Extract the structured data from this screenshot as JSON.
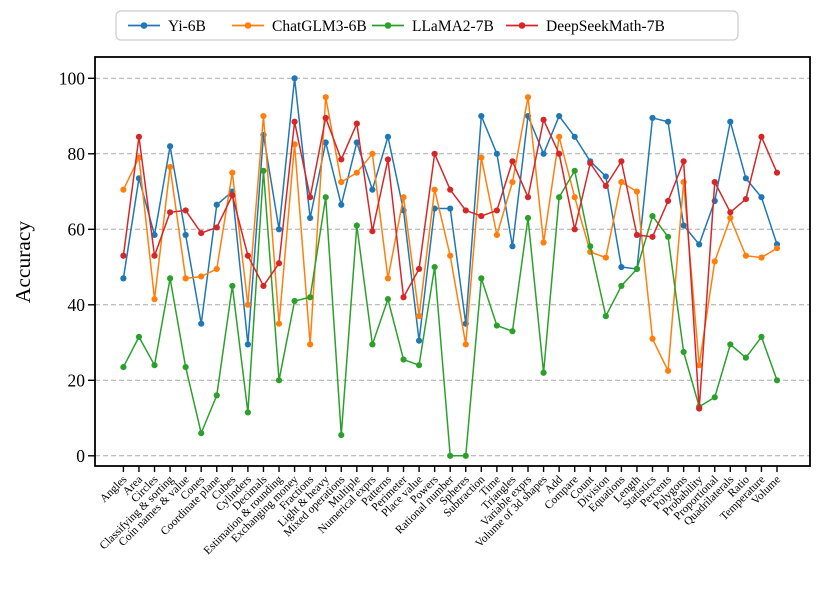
{
  "chart_data": {
    "type": "line",
    "title": "",
    "xlabel": "",
    "ylabel": "Accuracy",
    "ylim": [
      0,
      100
    ],
    "yticks": [
      0,
      20,
      40,
      60,
      80,
      100
    ],
    "grid": "horizontal-dashed",
    "legend_position": "top-center-horizontal",
    "categories": [
      "Angles",
      "Area",
      "Circles",
      "Classifying & sorting",
      "Coin names & value",
      "Cones",
      "Coordinate plane",
      "Cubes",
      "Cylinders",
      "Decimals",
      "Estimation & rounding",
      "Exchanging money",
      "Fractions",
      "Light & heavy",
      "Mixed operations",
      "Multiple",
      "Numerical exprs",
      "Patterns",
      "Perimeter",
      "Place value",
      "Powers",
      "Rational number",
      "Spheres",
      "Subtraction",
      "Time",
      "Triangles",
      "Variable exprs",
      "Volume of 3d shapes",
      "Add",
      "Compare",
      "Count",
      "Division",
      "Equations",
      "Length",
      "Statistics",
      "Percents",
      "Polygons",
      "Probability",
      "Proportional",
      "Quadrilaterals",
      "Ratio",
      "Temperature",
      "Volume"
    ],
    "series": [
      {
        "name": "Yi-6B",
        "color": "#1f77b4",
        "values": [
          47,
          73.5,
          58.5,
          82,
          58.5,
          35,
          66.5,
          70,
          29.5,
          85,
          60,
          100,
          63,
          83,
          66.5,
          83,
          70.5,
          84.5,
          65,
          30.5,
          65.5,
          65.5,
          35,
          90,
          80,
          55.5,
          90,
          80,
          90,
          84.5,
          78,
          74,
          50,
          49.5,
          89.5,
          88.5,
          61,
          56,
          67.5,
          88.5,
          73.5,
          68.5,
          56
        ]
      },
      {
        "name": "ChatGLM3-6B",
        "color": "#ff7f0e",
        "values": [
          70.5,
          79,
          41.5,
          76.5,
          47,
          47.5,
          49.5,
          75,
          40,
          90,
          35,
          82.5,
          29.5,
          95,
          72.5,
          75,
          80,
          47,
          68.5,
          37,
          70.5,
          53,
          29.5,
          79,
          58.5,
          72.5,
          95,
          56.5,
          84.5,
          68.5,
          54,
          52.5,
          72.5,
          70,
          31,
          22.5,
          72.5,
          24,
          51.5,
          63,
          53,
          52.5,
          55
        ]
      },
      {
        "name": "LLaMA2-7B",
        "color": "#2ca02c",
        "values": [
          23.5,
          31.5,
          24,
          47,
          23.5,
          6,
          16,
          45,
          11.5,
          75.5,
          20,
          41,
          42,
          68.5,
          5.5,
          61,
          29.5,
          41.5,
          25.5,
          24,
          50,
          0,
          0,
          47,
          34.5,
          33,
          63,
          22,
          68.5,
          75.5,
          55.5,
          37,
          45,
          49.5,
          63.5,
          58,
          27.5,
          13,
          15.5,
          29.5,
          26,
          31.5,
          20
        ]
      },
      {
        "name": "DeepSeekMath-7B",
        "color": "#d62728",
        "values": [
          53,
          84.5,
          53,
          64.5,
          65,
          59,
          60.5,
          69,
          53,
          45,
          51,
          88.5,
          68.5,
          89.5,
          78.5,
          88,
          59.5,
          78.5,
          42,
          49.5,
          80,
          70.5,
          65,
          63.5,
          65,
          78,
          68.5,
          89,
          80,
          60,
          77.5,
          71.5,
          78,
          58.5,
          58,
          67.5,
          78,
          12.5,
          72.5,
          64.5,
          68,
          84.5,
          75
        ]
      }
    ]
  },
  "axis": {
    "y_label": "Accuracy",
    "y_tick_labels": [
      "0",
      "20",
      "40",
      "60",
      "80",
      "100"
    ]
  },
  "legend": {
    "items": [
      "Yi-6B",
      "ChatGLM3-6B",
      "LLaMA2-7B",
      "DeepSeekMath-7B"
    ]
  },
  "colors": {
    "grid": "#aaaaaa",
    "spine": "#000000",
    "legend_border": "#cccccc",
    "background": "#ffffff"
  }
}
